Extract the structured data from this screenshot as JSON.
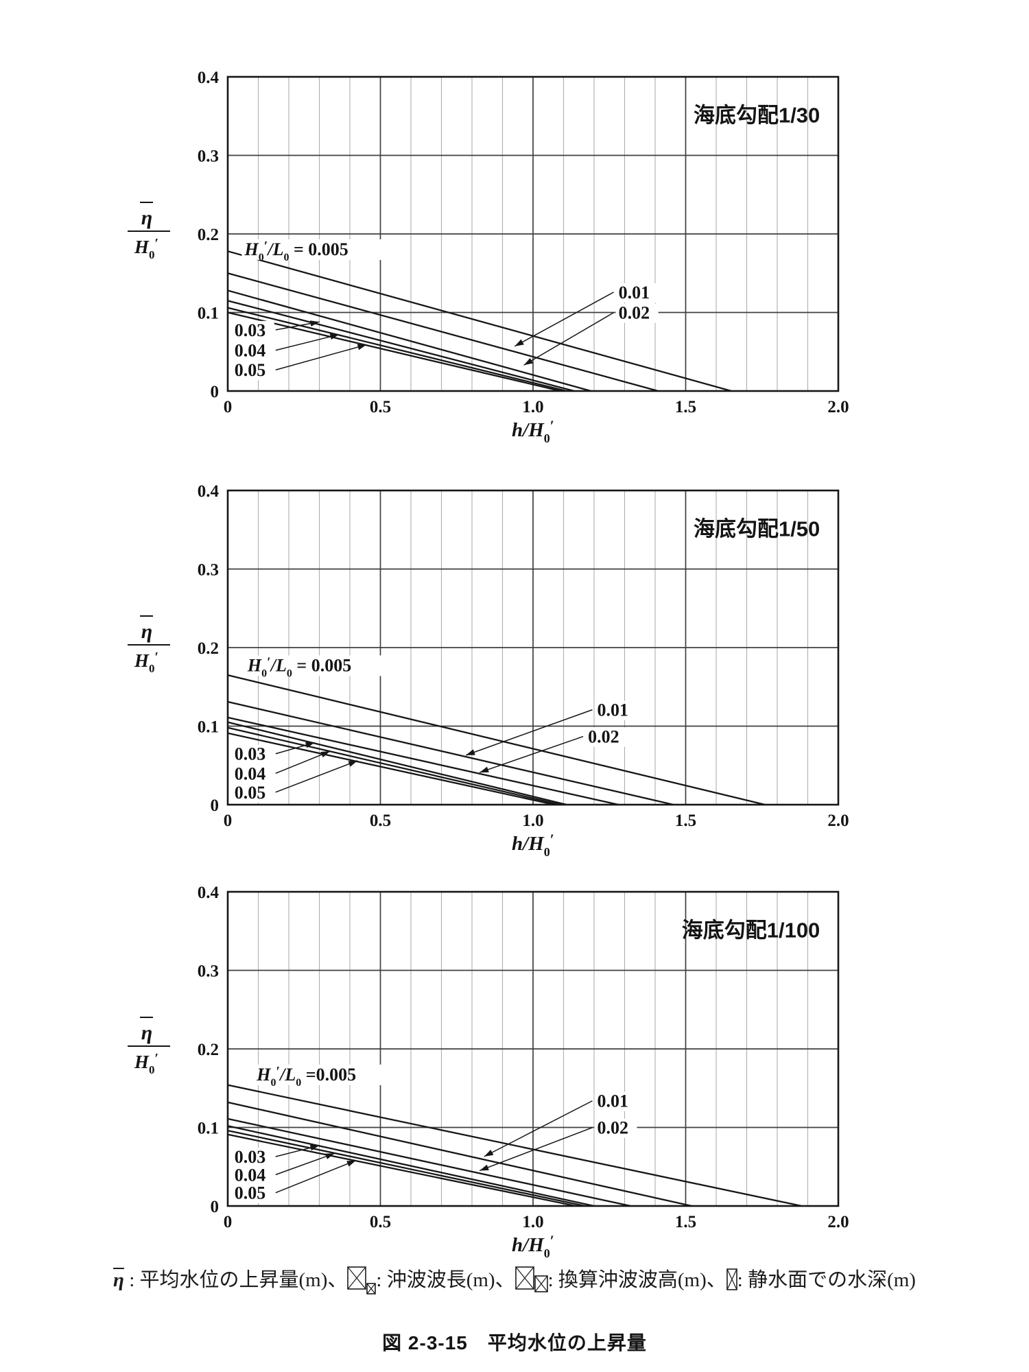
{
  "figure_title": "図 2-3-15　平均水位の上昇量",
  "caption": {
    "parts": [
      {
        "t": "etabar",
        "v": "η"
      },
      {
        "t": "text",
        "v": " : 平均水位の上昇量(m)、"
      },
      {
        "t": "box",
        "v": "tall"
      },
      {
        "t": "box",
        "v": "small"
      },
      {
        "t": "text",
        "v": ": 沖波波長(m)、"
      },
      {
        "t": "box",
        "v": "tall"
      },
      {
        "t": "box",
        "v": "mid"
      },
      {
        "t": "text",
        "v": ": 換算沖波波高(m)、"
      },
      {
        "t": "box",
        "v": "narrow"
      },
      {
        "t": "text",
        "v": ": 静水面での水深(m)"
      }
    ]
  },
  "colors": {
    "line": "#161616",
    "grid_major": "#3f3f3f",
    "grid_minor": "#adadad",
    "border": "#161616",
    "text": "#141414",
    "knockout": "#ffffff"
  },
  "chart_data": [
    {
      "type": "line",
      "title": "海底勾配1/30",
      "xlabel": "h/H0'",
      "ylabel": "η̄/H0'",
      "xlim": [
        0,
        2.0
      ],
      "ylim": [
        0,
        0.4
      ],
      "x_ticks": [
        "0",
        "0.5",
        "1.0",
        "1.5",
        "2.0"
      ],
      "y_ticks": [
        "0",
        "0.1",
        "0.2",
        "0.3",
        "0.4"
      ],
      "grid": "on",
      "steepness_value": "0.005",
      "steepness_text": " = 0.005",
      "steepness_pos": {
        "x": 0.055,
        "y": 0.173
      },
      "series": [
        {
          "name": "0.005",
          "points": [
            [
              0,
              0.178
            ],
            [
              1.65,
              0
            ]
          ]
        },
        {
          "name": "0.01",
          "points": [
            [
              0,
              0.15
            ],
            [
              1.41,
              0
            ]
          ]
        },
        {
          "name": "0.02",
          "points": [
            [
              0,
              0.128
            ],
            [
              1.19,
              0
            ]
          ]
        },
        {
          "name": "0.03",
          "points": [
            [
              0,
              0.115
            ],
            [
              1.135,
              0
            ]
          ]
        },
        {
          "name": "0.04",
          "points": [
            [
              0,
              0.106
            ],
            [
              1.11,
              0
            ]
          ]
        },
        {
          "name": "0.05",
          "points": [
            [
              0,
              0.1
            ],
            [
              1.09,
              0
            ]
          ]
        }
      ],
      "annotations": [
        {
          "label": "0.01",
          "lx": 1.28,
          "ly": 0.118,
          "tx": 0.94,
          "ty": 0.057,
          "side": "right"
        },
        {
          "label": "0.02",
          "lx": 1.28,
          "ly": 0.092,
          "tx": 0.97,
          "ty": 0.033,
          "side": "right"
        },
        {
          "label": "0.03",
          "lx": 0.022,
          "ly": 0.07,
          "tx": 0.3,
          "ty": 0.088,
          "side": "left"
        },
        {
          "label": "0.04",
          "lx": 0.022,
          "ly": 0.044,
          "tx": 0.365,
          "ty": 0.072,
          "side": "left"
        },
        {
          "label": "0.05",
          "lx": 0.022,
          "ly": 0.019,
          "tx": 0.455,
          "ty": 0.059,
          "side": "left"
        }
      ]
    },
    {
      "type": "line",
      "title": "海底勾配1/50",
      "xlabel": "h/H0'",
      "ylabel": "η̄/H0'",
      "xlim": [
        0,
        2.0
      ],
      "ylim": [
        0,
        0.4
      ],
      "x_ticks": [
        "0",
        "0.5",
        "1.0",
        "1.5",
        "2.0"
      ],
      "y_ticks": [
        "0",
        "0.1",
        "0.2",
        "0.3",
        "0.4"
      ],
      "grid": "on",
      "steepness_value": "0.005",
      "steepness_text": " = 0.005",
      "steepness_pos": {
        "x": 0.065,
        "y": 0.17
      },
      "series": [
        {
          "name": "0.005",
          "points": [
            [
              0,
              0.165
            ],
            [
              1.76,
              0
            ]
          ]
        },
        {
          "name": "0.01",
          "points": [
            [
              0,
              0.131
            ],
            [
              1.46,
              0
            ]
          ]
        },
        {
          "name": "0.02",
          "points": [
            [
              0,
              0.111
            ],
            [
              1.28,
              0
            ]
          ]
        },
        {
          "name": "0.03",
          "points": [
            [
              0,
              0.105
            ],
            [
              1.11,
              0
            ]
          ]
        },
        {
          "name": "0.04",
          "points": [
            [
              0,
              0.098
            ],
            [
              1.09,
              0
            ]
          ]
        },
        {
          "name": "0.05",
          "points": [
            [
              0,
              0.091
            ],
            [
              1.07,
              0
            ]
          ]
        }
      ],
      "annotations": [
        {
          "label": "0.01",
          "lx": 1.21,
          "ly": 0.113,
          "tx": 0.78,
          "ty": 0.063,
          "side": "right"
        },
        {
          "label": "0.02",
          "lx": 1.18,
          "ly": 0.079,
          "tx": 0.825,
          "ty": 0.041,
          "side": "right"
        },
        {
          "label": "0.03",
          "lx": 0.022,
          "ly": 0.057,
          "tx": 0.285,
          "ty": 0.079,
          "side": "left"
        },
        {
          "label": "0.04",
          "lx": 0.022,
          "ly": 0.032,
          "tx": 0.335,
          "ty": 0.068,
          "side": "left"
        },
        {
          "label": "0.05",
          "lx": 0.022,
          "ly": 0.008,
          "tx": 0.425,
          "ty": 0.056,
          "side": "left"
        }
      ]
    },
    {
      "type": "line",
      "title": "海底勾配1/100",
      "xlabel": "h/H0'",
      "ylabel": "η̄/H0'",
      "xlim": [
        0,
        2.0
      ],
      "ylim": [
        0,
        0.4
      ],
      "x_ticks": [
        "0",
        "0.5",
        "1.0",
        "1.5",
        "2.0"
      ],
      "y_ticks": [
        "0",
        "0.1",
        "0.2",
        "0.3",
        "0.4"
      ],
      "grid": "on",
      "steepness_value": "0.005",
      "steepness_text": " =0.005",
      "steepness_pos": {
        "x": 0.095,
        "y": 0.16
      },
      "series": [
        {
          "name": "0.005",
          "points": [
            [
              0,
              0.154
            ],
            [
              1.88,
              0
            ]
          ]
        },
        {
          "name": "0.01",
          "points": [
            [
              0,
              0.132
            ],
            [
              1.52,
              0
            ]
          ]
        },
        {
          "name": "0.02",
          "points": [
            [
              0,
              0.111
            ],
            [
              1.32,
              0
            ]
          ]
        },
        {
          "name": "0.03",
          "points": [
            [
              0,
              0.102
            ],
            [
              1.2,
              0
            ]
          ]
        },
        {
          "name": "0.04",
          "points": [
            [
              0,
              0.096
            ],
            [
              1.17,
              0
            ]
          ]
        },
        {
          "name": "0.05",
          "points": [
            [
              0,
              0.091
            ],
            [
              1.14,
              0
            ]
          ]
        }
      ],
      "annotations": [
        {
          "label": "0.01",
          "lx": 1.21,
          "ly": 0.126,
          "tx": 0.84,
          "ty": 0.063,
          "side": "right"
        },
        {
          "label": "0.02",
          "lx": 1.21,
          "ly": 0.092,
          "tx": 0.825,
          "ty": 0.045,
          "side": "right"
        },
        {
          "label": "0.03",
          "lx": 0.022,
          "ly": 0.055,
          "tx": 0.3,
          "ty": 0.077,
          "side": "left"
        },
        {
          "label": "0.04",
          "lx": 0.022,
          "ly": 0.032,
          "tx": 0.35,
          "ty": 0.067,
          "side": "left"
        },
        {
          "label": "0.05",
          "lx": 0.022,
          "ly": 0.009,
          "tx": 0.42,
          "ty": 0.058,
          "side": "left"
        }
      ]
    }
  ]
}
